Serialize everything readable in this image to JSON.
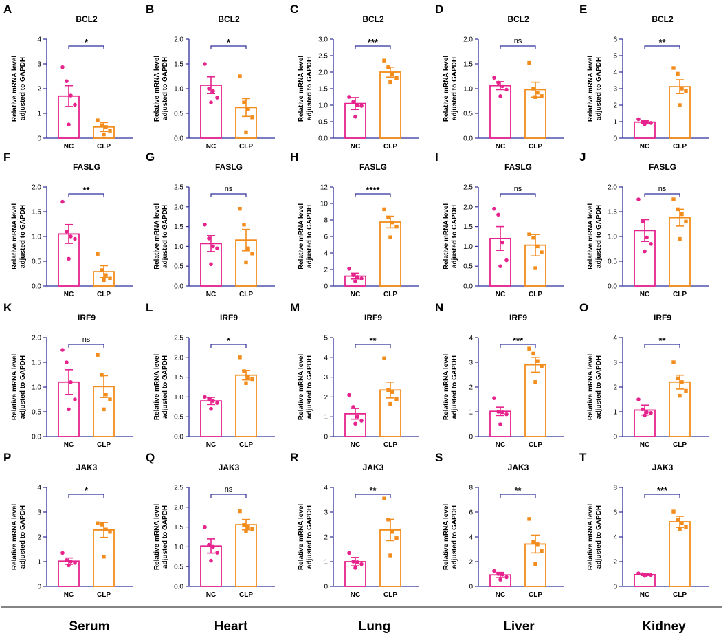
{
  "chart_data": [
    {
      "type": "bar",
      "panel": "A",
      "title": "BCL2",
      "tissue": "Serum",
      "ylabel": [
        "Relative mRNA level",
        "adjusted to GAPDH"
      ],
      "categories": [
        "NC",
        "CLP"
      ],
      "ylim": [
        0,
        4
      ],
      "yticks": [
        0,
        1,
        2,
        3,
        4
      ],
      "means": [
        1.7,
        0.45
      ],
      "sems": [
        0.42,
        0.18
      ],
      "points": [
        [
          2.87,
          2.3,
          1.72,
          1.35,
          0.55
        ],
        [
          0.72,
          0.52,
          0.45,
          0.3,
          0.15
        ]
      ],
      "significance": "*"
    },
    {
      "type": "bar",
      "panel": "B",
      "title": "BCL2",
      "tissue": "Heart",
      "ylabel": [
        "Relative mRNA level",
        "adjusted to GAPDH"
      ],
      "categories": [
        "NC",
        "CLP"
      ],
      "ylim": [
        0,
        2.0
      ],
      "yticks": [
        0.0,
        0.5,
        1.0,
        1.5,
        2.0
      ],
      "means": [
        1.07,
        0.62
      ],
      "sems": [
        0.17,
        0.18
      ],
      "points": [
        [
          1.5,
          1.0,
          0.95,
          0.82,
          0.72
        ],
        [
          1.25,
          0.72,
          0.58,
          0.42,
          0.12
        ]
      ],
      "significance": "*"
    },
    {
      "type": "bar",
      "panel": "C",
      "title": "BCL2",
      "tissue": "Lung",
      "ylabel": [
        "Relative mRNA level",
        "adjusted to GAPDH"
      ],
      "categories": [
        "NC",
        "CLP"
      ],
      "ylim": [
        0,
        3.0
      ],
      "yticks": [
        0.0,
        0.5,
        1.0,
        1.5,
        2.0,
        2.5,
        3.0
      ],
      "means": [
        1.05,
        2.0
      ],
      "sems": [
        0.18,
        0.15
      ],
      "points": [
        [
          1.25,
          1.1,
          1.0,
          0.98,
          0.65
        ],
        [
          2.35,
          2.15,
          1.95,
          1.82,
          1.7
        ]
      ],
      "significance": "***"
    },
    {
      "type": "bar",
      "panel": "D",
      "title": "BCL2",
      "tissue": "Liver",
      "ylabel": [
        "Relative mRNA level",
        "adjusted to GAPDH"
      ],
      "categories": [
        "NC",
        "CLP"
      ],
      "ylim": [
        0,
        2.0
      ],
      "yticks": [
        0.0,
        0.5,
        1.0,
        1.5,
        2.0
      ],
      "means": [
        1.06,
        0.98
      ],
      "sems": [
        0.08,
        0.15
      ],
      "points": [
        [
          1.22,
          1.12,
          1.05,
          0.98,
          0.85
        ],
        [
          1.52,
          1.0,
          0.92,
          0.85,
          0.83
        ]
      ],
      "significance": "ns"
    },
    {
      "type": "bar",
      "panel": "E",
      "title": "BCL2",
      "tissue": "Kidney",
      "ylabel": [
        "Relative mRNA level",
        "adjusted to GAPDH"
      ],
      "categories": [
        "NC",
        "CLP"
      ],
      "ylim": [
        0,
        6
      ],
      "yticks": [
        0,
        1,
        2,
        3,
        4,
        5,
        6
      ],
      "means": [
        0.97,
        3.12
      ],
      "sems": [
        0.08,
        0.42
      ],
      "points": [
        [
          1.15,
          1.0,
          0.95,
          0.92,
          0.85
        ],
        [
          4.25,
          3.9,
          3.0,
          2.85,
          2.0
        ]
      ],
      "significance": "**"
    },
    {
      "type": "bar",
      "panel": "F",
      "title": "FASLG",
      "tissue": "Serum",
      "ylabel": [
        "Relative mRNA level",
        "adjusted to GAPDH"
      ],
      "categories": [
        "NC",
        "CLP"
      ],
      "ylim": [
        0,
        2.0
      ],
      "yticks": [
        0.0,
        0.5,
        1.0,
        1.5,
        2.0
      ],
      "means": [
        1.05,
        0.29
      ],
      "sems": [
        0.19,
        0.12
      ],
      "points": [
        [
          1.7,
          1.1,
          1.0,
          0.95,
          0.55
        ],
        [
          0.65,
          0.32,
          0.22,
          0.15,
          0.12
        ]
      ],
      "significance": "**"
    },
    {
      "type": "bar",
      "panel": "G",
      "title": "FASLG",
      "tissue": "Heart",
      "ylabel": [
        "Relative mRNA level",
        "adjusted to GAPDH"
      ],
      "categories": [
        "NC",
        "CLP"
      ],
      "ylim": [
        0,
        2.5
      ],
      "yticks": [
        0.0,
        0.5,
        1.0,
        1.5,
        2.0,
        2.5
      ],
      "means": [
        1.07,
        1.16
      ],
      "sems": [
        0.2,
        0.27
      ],
      "points": [
        [
          1.55,
          1.2,
          1.0,
          0.95,
          0.55
        ],
        [
          1.95,
          1.55,
          0.95,
          0.82,
          0.6
        ]
      ],
      "significance": "ns"
    },
    {
      "type": "bar",
      "panel": "H",
      "title": "FASLG",
      "tissue": "Lung",
      "ylabel": [
        "Relative mRNA level",
        "adjusted to GAPDH"
      ],
      "categories": [
        "NC",
        "CLP"
      ],
      "ylim": [
        0,
        12
      ],
      "yticks": [
        0,
        2,
        4,
        6,
        8,
        10,
        12
      ],
      "means": [
        1.2,
        7.75
      ],
      "sems": [
        0.35,
        0.7
      ],
      "points": [
        [
          2.1,
          1.3,
          1.1,
          0.9,
          0.55
        ],
        [
          9.3,
          8.3,
          7.7,
          7.2,
          5.9
        ]
      ],
      "significance": "****"
    },
    {
      "type": "bar",
      "panel": "I",
      "title": "FASLG",
      "tissue": "Liver",
      "ylabel": [
        "Relative mRNA level",
        "adjusted to GAPDH"
      ],
      "categories": [
        "NC",
        "CLP"
      ],
      "ylim": [
        0,
        2.5
      ],
      "yticks": [
        0.0,
        0.5,
        1.0,
        1.5,
        2.0,
        2.5
      ],
      "means": [
        1.2,
        1.03
      ],
      "sems": [
        0.3,
        0.27
      ],
      "points": [
        [
          1.95,
          1.8,
          1.1,
          0.65,
          0.5
        ],
        [
          1.3,
          1.22,
          1.0,
          0.85,
          0.45
        ]
      ],
      "significance": "ns"
    },
    {
      "type": "bar",
      "panel": "J",
      "title": "FASLG",
      "tissue": "Kidney",
      "ylabel": [
        "Relative mRNA level",
        "adjusted to GAPDH"
      ],
      "categories": [
        "NC",
        "CLP"
      ],
      "ylim": [
        0,
        2.0
      ],
      "yticks": [
        0.0,
        0.5,
        1.0,
        1.5,
        2.0
      ],
      "means": [
        1.12,
        1.38
      ],
      "sems": [
        0.22,
        0.17
      ],
      "points": [
        [
          1.75,
          1.3,
          0.98,
          0.85,
          0.7
        ],
        [
          1.75,
          1.55,
          1.45,
          1.3,
          0.95
        ]
      ],
      "significance": "ns"
    },
    {
      "type": "bar",
      "panel": "K",
      "title": "IRF9",
      "tissue": "Serum",
      "ylabel": [
        "Relative mRNA level",
        "adjusted to GAPDH"
      ],
      "categories": [
        "NC",
        "CLP"
      ],
      "ylim": [
        0,
        2.0
      ],
      "yticks": [
        0.0,
        0.5,
        1.0,
        1.5,
        2.0
      ],
      "means": [
        1.1,
        1.01
      ],
      "sems": [
        0.25,
        0.22
      ],
      "points": [
        [
          1.75,
          1.5,
          1.1,
          0.75,
          0.55
        ],
        [
          1.65,
          1.25,
          0.85,
          0.75,
          0.55
        ]
      ],
      "significance": "ns"
    },
    {
      "type": "bar",
      "panel": "L",
      "title": "IRF9",
      "tissue": "Heart",
      "ylabel": [
        "Relative mRNA level",
        "adjusted to GAPDH"
      ],
      "categories": [
        "NC",
        "CLP"
      ],
      "ylim": [
        0,
        2.5
      ],
      "yticks": [
        0.0,
        0.5,
        1.0,
        1.5,
        2.0,
        2.5
      ],
      "means": [
        0.9,
        1.55
      ],
      "sems": [
        0.09,
        0.12
      ],
      "points": [
        [
          1.0,
          0.95,
          0.9,
          0.85,
          0.7
        ],
        [
          2.0,
          1.65,
          1.5,
          1.45,
          1.35
        ]
      ],
      "significance": "*"
    },
    {
      "type": "bar",
      "panel": "M",
      "title": "IRF9",
      "tissue": "Lung",
      "ylabel": [
        "Relative mRNA level",
        "adjusted to GAPDH"
      ],
      "categories": [
        "NC",
        "CLP"
      ],
      "ylim": [
        0,
        5
      ],
      "yticks": [
        0,
        1,
        2,
        3,
        4,
        5
      ],
      "means": [
        1.15,
        2.35
      ],
      "sems": [
        0.27,
        0.4
      ],
      "points": [
        [
          2.1,
          1.5,
          1.0,
          0.8,
          0.65
        ],
        [
          3.95,
          2.35,
          2.25,
          1.9,
          1.65
        ]
      ],
      "significance": "**"
    },
    {
      "type": "bar",
      "panel": "N",
      "title": "IRF9",
      "tissue": "Liver",
      "ylabel": [
        "Relative mRNA level",
        "adjusted to GAPDH"
      ],
      "categories": [
        "NC",
        "CLP"
      ],
      "ylim": [
        0,
        4
      ],
      "yticks": [
        0,
        1,
        2,
        3,
        4
      ],
      "means": [
        1.02,
        2.9
      ],
      "sems": [
        0.17,
        0.3
      ],
      "points": [
        [
          1.55,
          1.0,
          0.98,
          0.9,
          0.5
        ],
        [
          3.55,
          3.35,
          3.05,
          2.85,
          2.2
        ]
      ],
      "significance": "***"
    },
    {
      "type": "bar",
      "panel": "O",
      "title": "IRF9",
      "tissue": "Kidney",
      "ylabel": [
        "Relative mRNA level",
        "adjusted to GAPDH"
      ],
      "categories": [
        "NC",
        "CLP"
      ],
      "ylim": [
        0,
        4
      ],
      "yticks": [
        0,
        1,
        2,
        3,
        4
      ],
      "means": [
        1.07,
        2.2
      ],
      "sems": [
        0.2,
        0.28
      ],
      "points": [
        [
          1.5,
          1.1,
          0.98,
          0.95,
          0.85
        ],
        [
          3.0,
          2.35,
          2.2,
          1.85,
          1.65
        ]
      ],
      "significance": "**"
    },
    {
      "type": "bar",
      "panel": "P",
      "title": "JAK3",
      "tissue": "Serum",
      "ylabel": [
        "Relative mRNA level",
        "adjusted to GAPDH"
      ],
      "categories": [
        "NC",
        "CLP"
      ],
      "ylim": [
        0,
        4
      ],
      "yticks": [
        0,
        1,
        2,
        3,
        4
      ],
      "means": [
        1.02,
        2.28
      ],
      "sems": [
        0.13,
        0.3
      ],
      "points": [
        [
          1.35,
          1.05,
          1.0,
          0.95,
          0.85
        ],
        [
          2.55,
          2.5,
          2.3,
          2.2,
          1.2
        ]
      ],
      "significance": "*"
    },
    {
      "type": "bar",
      "panel": "Q",
      "title": "JAK3",
      "tissue": "Heart",
      "ylabel": [
        "Relative mRNA level",
        "adjusted to GAPDH"
      ],
      "categories": [
        "NC",
        "CLP"
      ],
      "ylim": [
        0,
        2.5
      ],
      "yticks": [
        0.0,
        0.5,
        1.0,
        1.5,
        2.0,
        2.5
      ],
      "means": [
        1.02,
        1.56
      ],
      "sems": [
        0.18,
        0.13
      ],
      "points": [
        [
          1.5,
          1.05,
          1.0,
          0.85,
          0.65
        ],
        [
          1.9,
          1.55,
          1.5,
          1.45,
          1.4
        ]
      ],
      "significance": "ns"
    },
    {
      "type": "bar",
      "panel": "R",
      "title": "JAK3",
      "tissue": "Lung",
      "ylabel": [
        "Relative mRNA level",
        "adjusted to GAPDH"
      ],
      "categories": [
        "NC",
        "CLP"
      ],
      "ylim": [
        0,
        4
      ],
      "yticks": [
        0,
        1,
        2,
        3,
        4
      ],
      "means": [
        1.0,
        2.28
      ],
      "sems": [
        0.17,
        0.43
      ],
      "points": [
        [
          1.35,
          1.0,
          0.98,
          0.9,
          0.75
        ],
        [
          3.55,
          2.7,
          2.2,
          1.95,
          1.25
        ]
      ],
      "significance": "**"
    },
    {
      "type": "bar",
      "panel": "S",
      "title": "JAK3",
      "tissue": "Liver",
      "ylabel": [
        "Relative mRNA level",
        "adjusted to GAPDH"
      ],
      "categories": [
        "NC",
        "CLP"
      ],
      "ylim": [
        0,
        8
      ],
      "yticks": [
        0,
        2,
        4,
        6,
        8
      ],
      "means": [
        0.93,
        3.42
      ],
      "sems": [
        0.2,
        0.72
      ],
      "points": [
        [
          1.25,
          1.0,
          0.95,
          0.75,
          0.55
        ],
        [
          5.45,
          3.6,
          3.4,
          2.85,
          1.8
        ]
      ],
      "significance": "**"
    },
    {
      "type": "bar",
      "panel": "T",
      "title": "JAK3",
      "tissue": "Kidney",
      "ylabel": [
        "Relative mRNA level",
        "adjusted to GAPDH"
      ],
      "categories": [
        "NC",
        "CLP"
      ],
      "ylim": [
        0,
        8
      ],
      "yticks": [
        0,
        2,
        4,
        6,
        8
      ],
      "means": [
        0.95,
        5.22
      ],
      "sems": [
        0.07,
        0.45
      ],
      "points": [
        [
          1.05,
          0.98,
          0.95,
          0.92,
          0.85
        ],
        [
          6.05,
          5.35,
          5.1,
          4.8,
          4.65
        ]
      ],
      "significance": "***"
    }
  ],
  "tissues": [
    "Serum",
    "Heart",
    "Lung",
    "Liver",
    "Kidney"
  ],
  "colors": {
    "nc": "#e6238c",
    "clp": "#f28c1c",
    "axis": "#2f2f9a",
    "text": "#000000",
    "divider": "#3a3a3a"
  }
}
